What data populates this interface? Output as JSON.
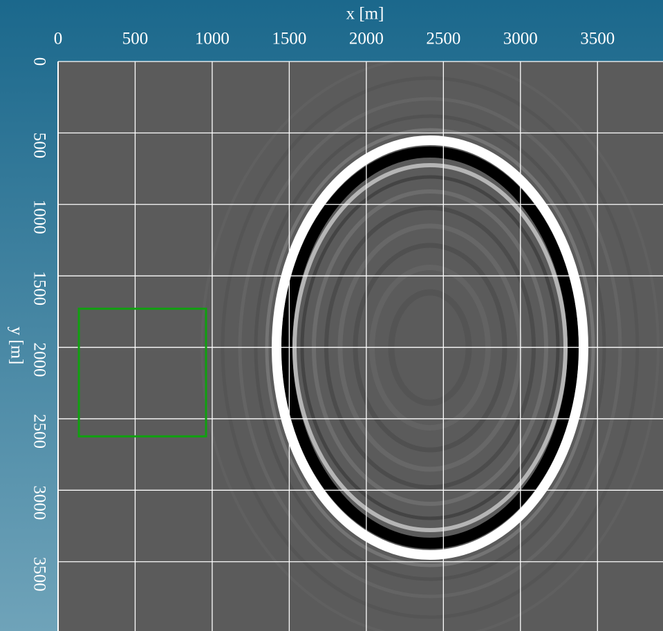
{
  "chart_data": {
    "type": "image",
    "xlabel": "x [m]",
    "ylabel": "y [m]",
    "xlim": [
      0,
      3925
    ],
    "ylim": [
      0,
      3985
    ],
    "xticks": [
      0,
      500,
      1000,
      1500,
      2000,
      2500,
      3000,
      3500
    ],
    "yticks": [
      0,
      500,
      1000,
      1500,
      2000,
      2500,
      3000,
      3500
    ],
    "grid": true,
    "rectangle": {
      "x": [
        135,
        960
      ],
      "y": [
        1730,
        2623
      ],
      "color": "#10a010"
    }
  }
}
